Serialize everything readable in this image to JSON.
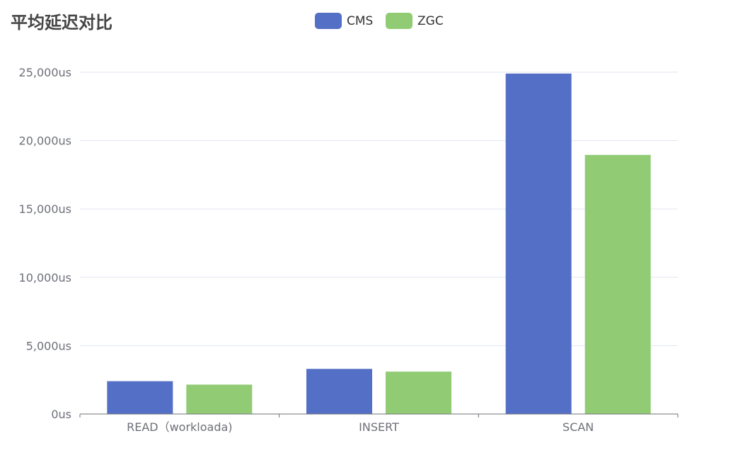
{
  "chart_data": {
    "type": "bar",
    "title": "平均延迟对比",
    "categories": [
      "READ（workloada)",
      "INSERT",
      "SCAN"
    ],
    "series": [
      {
        "name": "CMS",
        "color": "#5470c6",
        "values": [
          2400,
          3300,
          24900
        ]
      },
      {
        "name": "ZGC",
        "color": "#91cc75",
        "values": [
          2150,
          3100,
          18950
        ]
      }
    ],
    "ylim": [
      0,
      25000
    ],
    "yticks": [
      0,
      5000,
      10000,
      15000,
      20000,
      25000
    ],
    "yticks_labels": [
      "0us",
      "5,000us",
      "10,000us",
      "15,000us",
      "20,000us",
      "25,000us"
    ],
    "xlabel": "",
    "ylabel": "",
    "grid": true,
    "legend_position": "top-center"
  }
}
